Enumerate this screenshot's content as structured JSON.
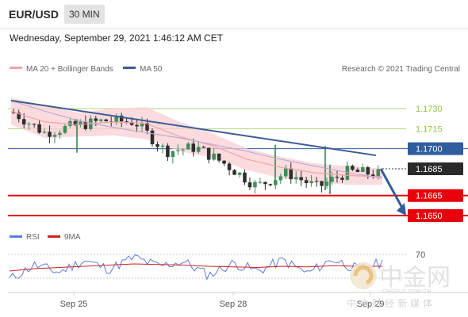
{
  "header": {
    "pair": "EUR/USD",
    "timeframe": "30 MIN",
    "datetime": "Wednesday, September 29, 2021 1:46:12 AM CET"
  },
  "legend": {
    "ma20": "MA 20 + Bollinger Bands",
    "ma50": "MA 50",
    "credit": "Research © 2021 Trading Central"
  },
  "rsi_legend": {
    "rsi": "RSI",
    "ma9": "9MA"
  },
  "watermark": {
    "cn": "中金网",
    "url": "CNGOLD.COM.CN",
    "sub": "中金财经新媒体"
  },
  "colors": {
    "green": "#8dc63f",
    "blue": "#2f5d9e",
    "red": "#e8000b",
    "band": "#f9cfd3",
    "ma20": "#f0a4a4",
    "ma50": "#3e5b96",
    "rsi": "#5b7ddf",
    "rsi_ma": "#d02020"
  },
  "chart_data": [
    {
      "type": "line",
      "title": "",
      "xlabel": "",
      "ylabel": "",
      "x_ticks": [
        "Sep 25",
        "Sep 28",
        "Sep 29"
      ],
      "ylim": [
        1.1645,
        1.1745
      ],
      "levels": [
        {
          "value": 1.173,
          "label": "1.1730",
          "style": "resistance"
        },
        {
          "value": 1.1715,
          "label": "1.1715",
          "style": "resistance"
        },
        {
          "value": 1.17,
          "label": "1.1700",
          "style": "pivot"
        },
        {
          "value": 1.1685,
          "label": "1.1685",
          "style": "current"
        },
        {
          "value": 1.1665,
          "label": "1.1665",
          "style": "support"
        },
        {
          "value": 1.165,
          "label": "1.1650",
          "style": "support"
        }
      ],
      "trendline": {
        "start": 1.1736,
        "end": 1.1695
      },
      "forecast": {
        "from": 1.1685,
        "to": 1.165,
        "direction": "down"
      },
      "series": [
        {
          "name": "MA 50",
          "values": [
            1.1736,
            1.1728,
            1.1721,
            1.1716,
            1.1712,
            1.1708,
            1.1703,
            1.1698,
            1.1692,
            1.1687,
            1.1682,
            1.1678
          ]
        },
        {
          "name": "MA 20 + Bollinger Bands",
          "values": [
            1.1728,
            1.172,
            1.1718,
            1.172,
            1.1719,
            1.1709,
            1.1702,
            1.1692,
            1.1686,
            1.1682,
            1.168,
            1.1679
          ]
        }
      ],
      "price_close": [
        1.1727,
        1.1712,
        1.1717,
        1.1721,
        1.172,
        1.1698,
        1.1701,
        1.1688,
        1.1672,
        1.1682,
        1.1671,
        1.1683,
        1.1681
      ]
    },
    {
      "type": "line",
      "title": "",
      "levels": [
        {
          "value": 70,
          "label": "70"
        }
      ],
      "series": [
        {
          "name": "RSI",
          "values": [
            28,
            52,
            40,
            60,
            45,
            65,
            50,
            58,
            35,
            55,
            42,
            60,
            38,
            62,
            45,
            56
          ]
        },
        {
          "name": "9MA",
          "values": [
            42,
            46,
            48,
            50,
            52,
            54,
            53,
            52,
            50,
            49,
            48,
            50,
            49,
            51,
            50,
            50
          ]
        }
      ]
    }
  ]
}
